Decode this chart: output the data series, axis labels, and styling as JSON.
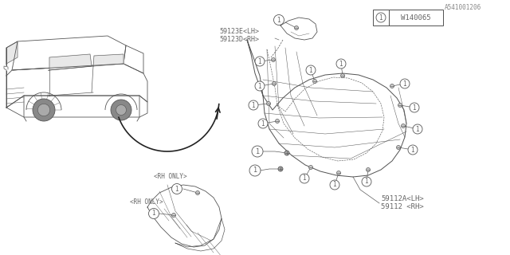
{
  "bg_color": "#ffffff",
  "title_code": "A541001206",
  "part_label_1": "59112 <RH>",
  "part_label_2": "59112A<LH>",
  "part_label_3": "59123D<RH>",
  "part_label_4": "59123E<LH>",
  "rh_only_1": "<RH ONLY>",
  "rh_only_2": "<RH ONLY>",
  "fastener_label": "W140065",
  "callout_num": "1",
  "line_color": "#555555",
  "text_color": "#666666"
}
